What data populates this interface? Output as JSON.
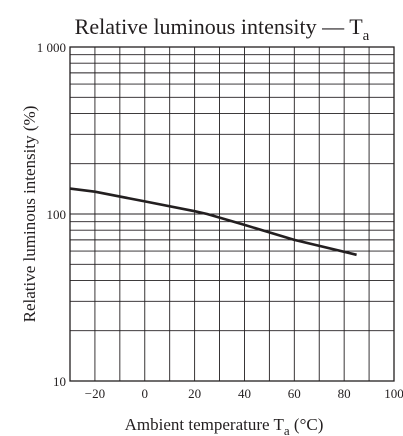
{
  "chart_data": {
    "type": "line",
    "title": {
      "main": "Relative luminous intensity — T",
      "sub": "a"
    },
    "xlabel": {
      "main": "Ambient temperature  T",
      "sub": "a",
      "suffix": "  (°C)"
    },
    "ylabel": "Relative luminous intensity  (%)",
    "xlim": [
      -30,
      100
    ],
    "ylim": [
      10,
      1000
    ],
    "yscale": "log",
    "grid": true,
    "xticks": [
      -20,
      0,
      20,
      40,
      60,
      80,
      100
    ],
    "xtick_labels": [
      "−20",
      "0",
      "20",
      "40",
      "60",
      "80",
      "100"
    ],
    "yticks": [
      10,
      100,
      1000
    ],
    "ytick_labels": [
      "10",
      "100",
      "1 000"
    ],
    "series": [
      {
        "x": [
          -30,
          -20,
          0,
          20,
          25,
          40,
          60,
          85
        ],
        "y": [
          142,
          136,
          119,
          104,
          100,
          86,
          70,
          57
        ]
      }
    ]
  }
}
